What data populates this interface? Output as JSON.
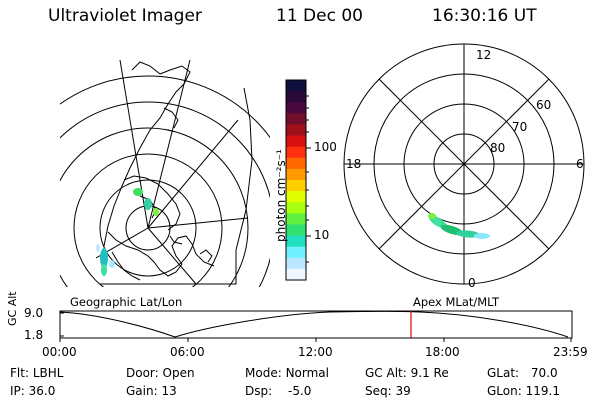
{
  "header": {
    "instrument": "Ultraviolet Imager",
    "date": "11 Dec 00",
    "time": "16:30:16 UT"
  },
  "left_panel": {
    "caption": "Geographic Lat/Lon"
  },
  "right_panel": {
    "caption": "Apex MLat/MLT",
    "mlt_labels": [
      "12",
      "18",
      "6",
      "0"
    ],
    "mlat_labels": [
      "60",
      "70",
      "80"
    ]
  },
  "colorbar": {
    "unit_label": "photon cm⁻²s⁻¹",
    "tick_labels": [
      "100",
      "10"
    ],
    "colors": [
      "#101040",
      "#2a0a3a",
      "#4a0a40",
      "#70102a",
      "#a01018",
      "#d81010",
      "#ff3010",
      "#ff6a00",
      "#ff9a00",
      "#ffd000",
      "#e0ff00",
      "#a8ff10",
      "#60f040",
      "#30e070",
      "#20e0c0",
      "#70f0ff",
      "#bce8ff",
      "#eef6ff"
    ]
  },
  "altitude_plot": {
    "ylabel": "GC Alt",
    "y_ticks": [
      "9.0",
      "1.8"
    ],
    "x_ticks": [
      "00:00",
      "06:00",
      "12:00",
      "18:00",
      "23:59"
    ],
    "marker_color": "#e00000"
  },
  "info": {
    "filter_label": "Flt:",
    "filter": "LBHL",
    "ip_label": "IP:",
    "ip": "36.0",
    "door_label": "Door:",
    "door": "Open",
    "gain_label": "Gain:",
    "gain": "13",
    "mode_label": "Mode:",
    "mode": "Normal",
    "dsp_label": "Dsp:",
    "dsp": "-5.0",
    "gcalt_label": "GC Alt:",
    "gcalt": "9.1 Re",
    "seq_label": "Seq:",
    "seq": "39",
    "glat_label": "GLat:",
    "glat": "70.0",
    "glon_label": "GLon:",
    "glon": "119.1"
  }
}
